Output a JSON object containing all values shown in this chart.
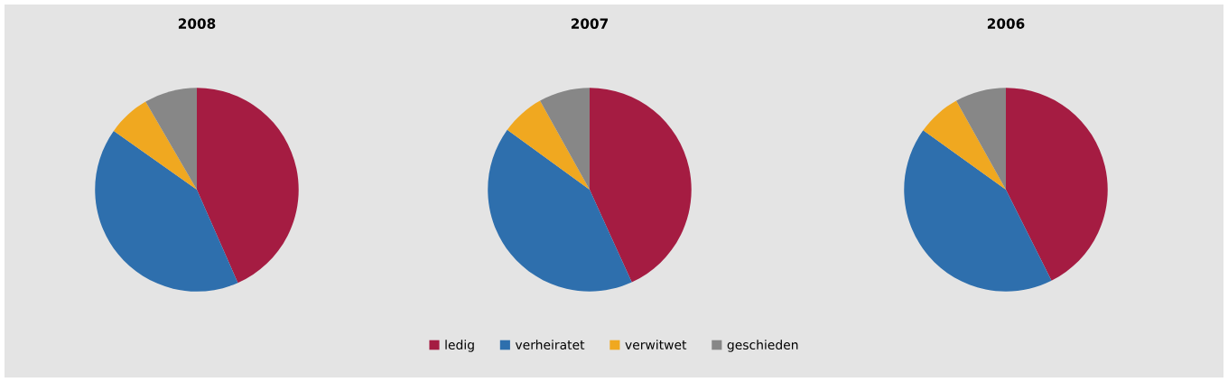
{
  "chart_data": [
    {
      "type": "pie",
      "title": "2008",
      "categories": [
        "ledig",
        "verheiratet",
        "verwitwet",
        "geschieden"
      ],
      "values": [
        43.4,
        41.4,
        6.8,
        8.4
      ],
      "colors": [
        "#a51c42",
        "#2e6fad",
        "#f0a820",
        "#878787"
      ],
      "legend": "bottom"
    },
    {
      "type": "pie",
      "title": "2007",
      "categories": [
        null,
        null,
        null,
        null
      ],
      "values": [
        43.2,
        41.8,
        6.9,
        8.1
      ],
      "colors": [
        "#a51c42",
        "#2e6fad",
        "#f0a820",
        "#878787"
      ]
    },
    {
      "type": "pie",
      "title": "2006",
      "categories": [
        null,
        null,
        null,
        null
      ],
      "values": [
        42.6,
        42.3,
        7.0,
        8.1
      ],
      "colors": [
        "#a51c42",
        "#2e6fad",
        "#f0a820",
        "#878787"
      ]
    }
  ]
}
